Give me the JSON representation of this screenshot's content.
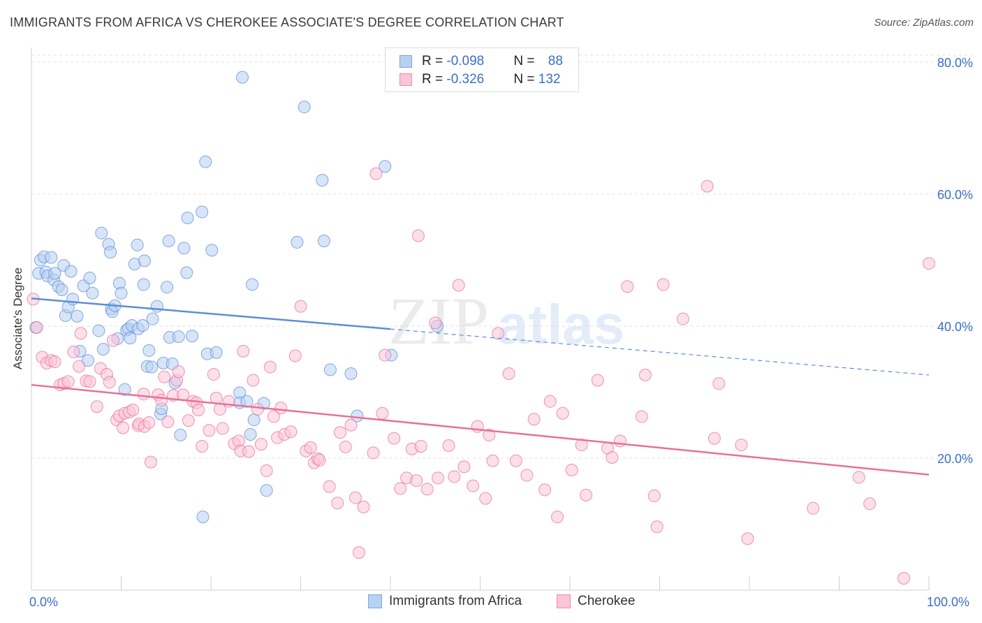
{
  "title": "IMMIGRANTS FROM AFRICA VS CHEROKEE ASSOCIATE'S DEGREE CORRELATION CHART",
  "source": "Source: ZipAtlas.com",
  "watermark": {
    "zip": "ZIP",
    "atlas": "atlas"
  },
  "legend_box": {
    "rows": [
      {
        "r_label": "R = ",
        "r_value": "-0.098",
        "n_label": "N = ",
        "n_value": "88",
        "color": "#7aa6e0",
        "fill": "#b8d0f2"
      },
      {
        "r_label": "R = ",
        "r_value": "-0.326",
        "n_label": "N = ",
        "n_value": "132",
        "color": "#f08cb0",
        "fill": "#f9c5d7"
      }
    ]
  },
  "chart_data": {
    "type": "scatter",
    "title": "IMMIGRANTS FROM AFRICA VS CHEROKEE ASSOCIATE'S DEGREE CORRELATION CHART",
    "xlabel": "",
    "ylabel": "Associate's Degree",
    "xlim": [
      0,
      100
    ],
    "ylim": [
      0,
      82
    ],
    "x_tick_labels": [
      "0.0%",
      "100.0%"
    ],
    "y_ticks": [
      20,
      40,
      60,
      80
    ],
    "y_tick_labels": [
      "20.0%",
      "40.0%",
      "60.0%",
      "80.0%"
    ],
    "grid": true,
    "legend_position": "bottom",
    "series": [
      {
        "name": "Immigrants from Africa",
        "color": "#5b8fd6",
        "fill": "#b8d0f2",
        "trend": {
          "x0": 0,
          "y0": 44.2,
          "x1": 100,
          "y1": 32.6,
          "solid_until": 40
        },
        "points": [
          [
            0.5,
            39.8
          ],
          [
            0.8,
            48
          ],
          [
            1,
            50
          ],
          [
            1.4,
            50.5
          ],
          [
            1.6,
            48.2
          ],
          [
            1.8,
            47.6
          ],
          [
            2.2,
            50.4
          ],
          [
            2.5,
            47
          ],
          [
            2.6,
            48
          ],
          [
            3,
            46
          ],
          [
            3.4,
            45.5
          ],
          [
            3.6,
            49.2
          ],
          [
            3.8,
            41.6
          ],
          [
            4.1,
            42.9
          ],
          [
            4.4,
            48.3
          ],
          [
            4.6,
            44.1
          ],
          [
            5.1,
            41.5
          ],
          [
            5.4,
            36.2
          ],
          [
            5.8,
            46.1
          ],
          [
            6.3,
            34.8
          ],
          [
            6.5,
            47.3
          ],
          [
            6.8,
            45
          ],
          [
            7.5,
            39.3
          ],
          [
            7.8,
            54.1
          ],
          [
            8,
            36.5
          ],
          [
            8.6,
            52.4
          ],
          [
            8.8,
            51.2
          ],
          [
            8.9,
            42.6
          ],
          [
            9,
            42.2
          ],
          [
            9.3,
            43.1
          ],
          [
            9.6,
            38.1
          ],
          [
            9.8,
            46.5
          ],
          [
            10,
            45
          ],
          [
            10.4,
            30.4
          ],
          [
            10.6,
            39.4
          ],
          [
            10.8,
            39.6
          ],
          [
            11,
            38.2
          ],
          [
            11.2,
            40.1
          ],
          [
            11.5,
            49.4
          ],
          [
            11.9,
            39.6
          ],
          [
            11.8,
            52.3
          ],
          [
            12.4,
            40.1
          ],
          [
            12.5,
            46.3
          ],
          [
            12.6,
            49.9
          ],
          [
            12.9,
            33.9
          ],
          [
            13.1,
            36.3
          ],
          [
            13.4,
            33.8
          ],
          [
            13.5,
            41.1
          ],
          [
            14,
            43
          ],
          [
            14.4,
            26.7
          ],
          [
            14.5,
            27.5
          ],
          [
            14.7,
            34.4
          ],
          [
            15.1,
            45.9
          ],
          [
            15.3,
            52.9
          ],
          [
            15.4,
            38.3
          ],
          [
            15.7,
            34.3
          ],
          [
            16,
            31.4
          ],
          [
            16.4,
            38.4
          ],
          [
            16.6,
            23.5
          ],
          [
            17,
            51.8
          ],
          [
            17.3,
            48.1
          ],
          [
            17.4,
            56.4
          ],
          [
            17.9,
            38.5
          ],
          [
            19,
            57.3
          ],
          [
            19.1,
            11.1
          ],
          [
            19.4,
            64.9
          ],
          [
            19.6,
            35.8
          ],
          [
            20.1,
            51.5
          ],
          [
            20.6,
            36
          ],
          [
            23.2,
            29.9
          ],
          [
            23.2,
            28.4
          ],
          [
            23.5,
            77.7
          ],
          [
            24,
            28.6
          ],
          [
            24.4,
            23.6
          ],
          [
            24.6,
            46.3
          ],
          [
            24.8,
            25.8
          ],
          [
            25.9,
            28.3
          ],
          [
            26.2,
            15.1
          ],
          [
            29.6,
            52.7
          ],
          [
            30.4,
            73.2
          ],
          [
            32.4,
            62.1
          ],
          [
            32.6,
            52.9
          ],
          [
            33.3,
            33.4
          ],
          [
            35.6,
            32.8
          ],
          [
            36.3,
            26.4
          ],
          [
            39.4,
            64.2
          ],
          [
            40.1,
            35.6
          ],
          [
            45.2,
            40
          ]
        ]
      },
      {
        "name": "Cherokee",
        "color": "#e8709a",
        "fill": "#f9c5d7",
        "trend": {
          "x0": 0,
          "y0": 31.1,
          "x1": 100,
          "y1": 17.5
        },
        "points": [
          [
            0.2,
            44.1
          ],
          [
            0.6,
            39.8
          ],
          [
            1.2,
            35.3
          ],
          [
            1.7,
            34.4
          ],
          [
            2.2,
            34.8
          ],
          [
            2.6,
            34.6
          ],
          [
            3.2,
            31.1
          ],
          [
            3.6,
            31.3
          ],
          [
            4.1,
            31.6
          ],
          [
            4.7,
            36.1
          ],
          [
            5.3,
            33.9
          ],
          [
            5.5,
            38.9
          ],
          [
            6.1,
            31.7
          ],
          [
            6.5,
            31.6
          ],
          [
            7.3,
            27.8
          ],
          [
            7.7,
            33.6
          ],
          [
            8.4,
            32.7
          ],
          [
            8.7,
            31.5
          ],
          [
            9.1,
            37.8
          ],
          [
            9.5,
            25.8
          ],
          [
            9.8,
            26.4
          ],
          [
            10.2,
            24.6
          ],
          [
            10.4,
            26.8
          ],
          [
            10.9,
            27
          ],
          [
            11.3,
            27.3
          ],
          [
            11.9,
            24.9
          ],
          [
            12,
            25.2
          ],
          [
            12.5,
            29.7
          ],
          [
            12.6,
            24.8
          ],
          [
            13.1,
            25.4
          ],
          [
            13.3,
            19.4
          ],
          [
            14.1,
            29.6
          ],
          [
            14.5,
            28.8
          ],
          [
            14.8,
            32.3
          ],
          [
            15.2,
            25.5
          ],
          [
            15.8,
            29.5
          ],
          [
            16.2,
            31.8
          ],
          [
            16.4,
            33.1
          ],
          [
            16.9,
            29.6
          ],
          [
            17.5,
            25.7
          ],
          [
            18,
            28.6
          ],
          [
            18.4,
            28.4
          ],
          [
            18.6,
            27.3
          ],
          [
            19,
            21.8
          ],
          [
            19.8,
            24.2
          ],
          [
            20.3,
            32.7
          ],
          [
            20.6,
            29.1
          ],
          [
            21,
            27.4
          ],
          [
            21.3,
            24.5
          ],
          [
            22,
            28.6
          ],
          [
            22.6,
            22.2
          ],
          [
            23.1,
            22.6
          ],
          [
            23.3,
            21.1
          ],
          [
            23.6,
            36.2
          ],
          [
            24.2,
            21
          ],
          [
            24.7,
            31.8
          ],
          [
            25.2,
            27.4
          ],
          [
            25.6,
            22.1
          ],
          [
            26.2,
            18.1
          ],
          [
            26.6,
            33.8
          ],
          [
            27,
            26.3
          ],
          [
            27.4,
            23.1
          ],
          [
            27.8,
            27.6
          ],
          [
            28.2,
            23.6
          ],
          [
            28.9,
            24
          ],
          [
            29.4,
            35.5
          ],
          [
            30,
            43
          ],
          [
            30.6,
            21.1
          ],
          [
            31.1,
            21.6
          ],
          [
            31.5,
            19.3
          ],
          [
            31.9,
            19.9
          ],
          [
            32.1,
            19.7
          ],
          [
            33.2,
            15.7
          ],
          [
            34.1,
            13.2
          ],
          [
            34.4,
            23.9
          ],
          [
            35,
            21.7
          ],
          [
            35.6,
            25
          ],
          [
            36.1,
            14
          ],
          [
            36.5,
            5.7
          ],
          [
            37,
            12.6
          ],
          [
            38.1,
            20.8
          ],
          [
            38.4,
            63.1
          ],
          [
            39.1,
            26.8
          ],
          [
            39.4,
            35.6
          ],
          [
            40.4,
            23
          ],
          [
            41.1,
            15.4
          ],
          [
            41.8,
            17
          ],
          [
            42.4,
            21.4
          ],
          [
            42.9,
            16.6
          ],
          [
            43.1,
            53.7
          ],
          [
            43.4,
            21.8
          ],
          [
            44.1,
            15.3
          ],
          [
            45,
            40.5
          ],
          [
            45.3,
            17
          ],
          [
            46.5,
            21.9
          ],
          [
            47.1,
            17.2
          ],
          [
            47.6,
            46.2
          ],
          [
            48.2,
            18.7
          ],
          [
            49.2,
            15.8
          ],
          [
            49.7,
            24.8
          ],
          [
            50.6,
            13.9
          ],
          [
            51,
            23.5
          ],
          [
            51.4,
            19.6
          ],
          [
            52,
            38.9
          ],
          [
            53.2,
            32.8
          ],
          [
            54,
            19.6
          ],
          [
            55.2,
            17.4
          ],
          [
            56,
            25.9
          ],
          [
            57.2,
            15.2
          ],
          [
            57.8,
            28.6
          ],
          [
            58.6,
            11.1
          ],
          [
            59.2,
            26.8
          ],
          [
            60.2,
            18.2
          ],
          [
            61.3,
            22
          ],
          [
            61.8,
            14.4
          ],
          [
            63.1,
            31.8
          ],
          [
            64.2,
            21.5
          ],
          [
            64.7,
            20.1
          ],
          [
            65.6,
            22.6
          ],
          [
            66.4,
            46
          ],
          [
            68,
            26.3
          ],
          [
            68.4,
            32.6
          ],
          [
            69.4,
            14.3
          ],
          [
            69.7,
            9.6
          ],
          [
            70.4,
            46.3
          ],
          [
            72.6,
            41.1
          ],
          [
            75.3,
            61.2
          ],
          [
            76.1,
            23
          ],
          [
            76.6,
            31.3
          ],
          [
            79.1,
            22
          ],
          [
            79.8,
            7.8
          ],
          [
            87.1,
            12.4
          ],
          [
            92.2,
            17.1
          ],
          [
            93.4,
            13.1
          ],
          [
            97.2,
            1.8
          ],
          [
            100,
            49.5
          ]
        ]
      }
    ]
  }
}
